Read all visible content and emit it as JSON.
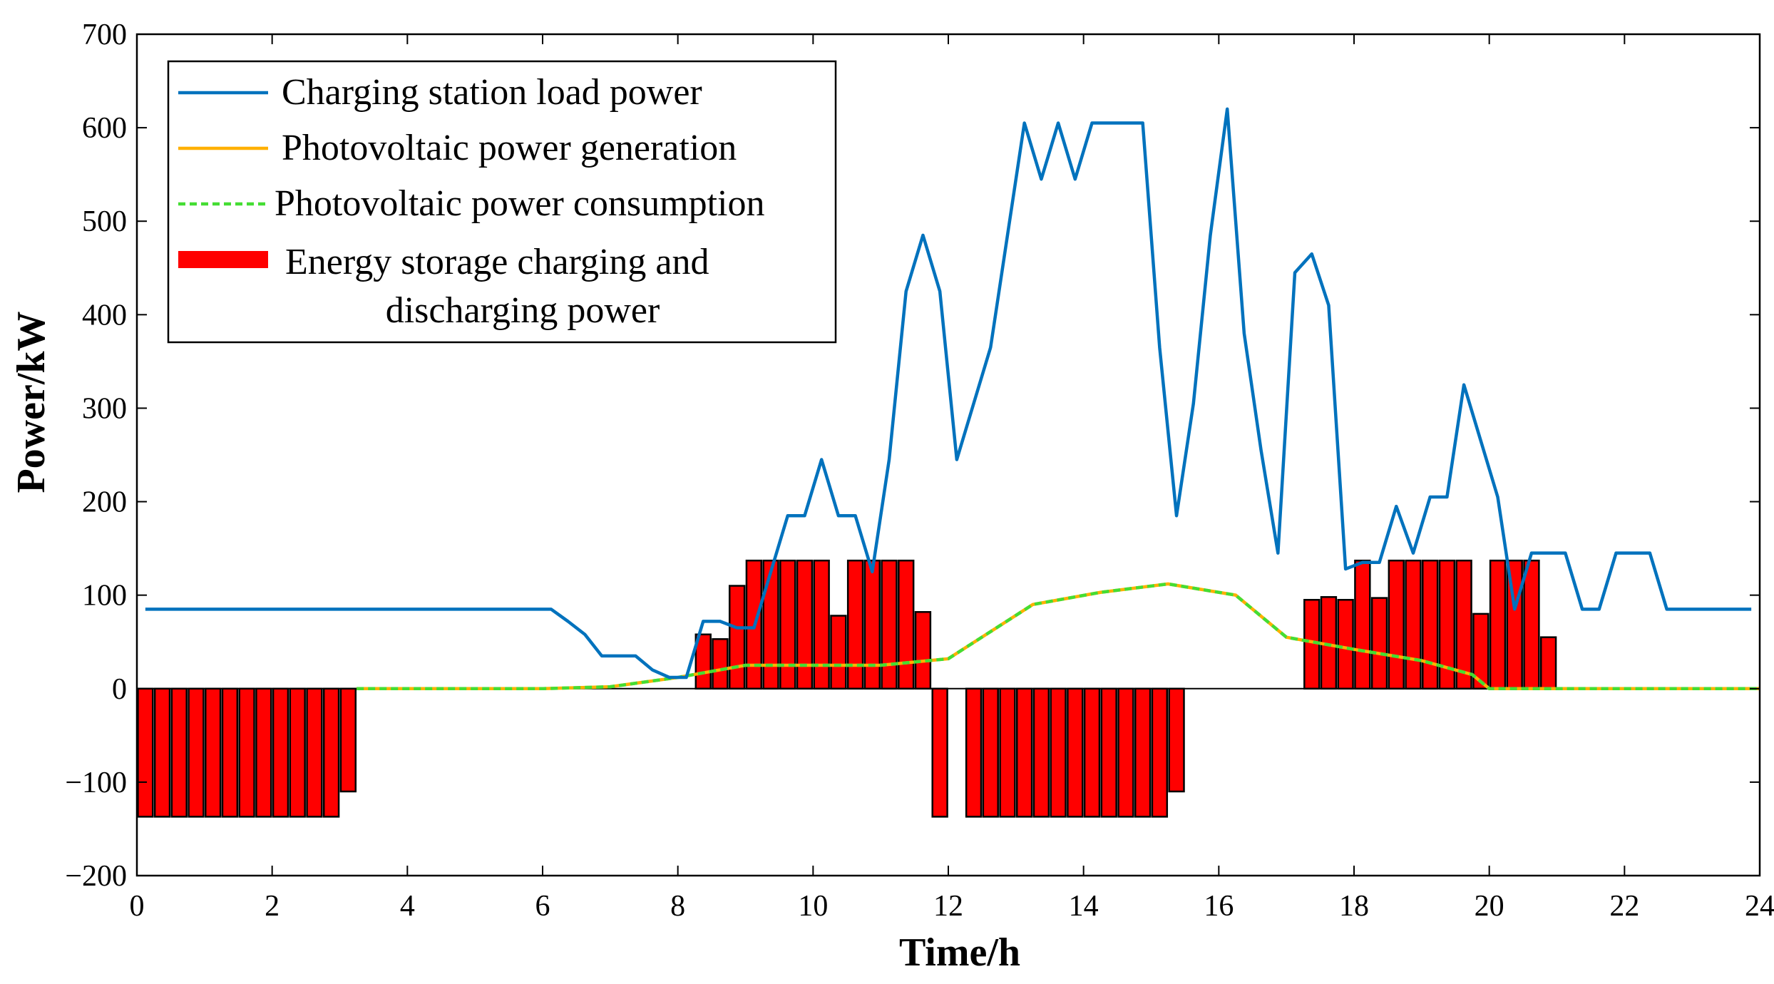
{
  "chart_data": {
    "type": "line+bar",
    "title": "",
    "xlabel": "Time/h",
    "ylabel": "Power/kW",
    "xlim": [
      0,
      24
    ],
    "ylim": [
      -200,
      700
    ],
    "xticks": [
      0,
      2,
      4,
      6,
      8,
      10,
      12,
      14,
      16,
      18,
      20,
      22,
      24
    ],
    "yticks": [
      -200,
      -100,
      0,
      100,
      200,
      300,
      400,
      500,
      600,
      700
    ],
    "legend_position": "top-left",
    "colors": {
      "load": "#0072BD",
      "pv_generation": "#FFB000",
      "pv_consumption": "#44DD33",
      "storage": "#FF0000",
      "bar_edge": "#000000"
    },
    "series": [
      {
        "name": "Charging station load power",
        "kind": "line",
        "x": [
          0.125,
          0.375,
          0.625,
          0.875,
          1.125,
          1.375,
          1.625,
          1.875,
          2.125,
          2.375,
          2.625,
          2.875,
          3.125,
          3.375,
          3.625,
          3.875,
          4.125,
          4.375,
          4.625,
          4.875,
          5.125,
          5.375,
          5.625,
          5.875,
          6.125,
          6.375,
          6.625,
          6.875,
          7.125,
          7.375,
          7.625,
          7.875,
          8.125,
          8.375,
          8.625,
          8.875,
          9.125,
          9.375,
          9.625,
          9.875,
          10.125,
          10.375,
          10.625,
          10.875,
          11.125,
          11.375,
          11.625,
          11.875,
          12.125,
          12.375,
          12.625,
          12.875,
          13.125,
          13.375,
          13.625,
          13.875,
          14.125,
          14.375,
          14.625,
          14.875,
          15.125,
          15.375,
          15.625,
          15.875,
          16.125,
          16.375,
          16.625,
          16.875,
          17.125,
          17.375,
          17.625,
          17.875,
          18.125,
          18.375,
          18.625,
          18.875,
          19.125,
          19.375,
          19.625,
          19.875,
          20.125,
          20.375,
          20.625,
          20.875,
          21.125,
          21.375,
          21.625,
          21.875,
          22.125,
          22.375,
          22.625,
          22.875,
          23.125,
          23.375,
          23.625,
          23.875
        ],
        "values": [
          85,
          85,
          85,
          85,
          85,
          85,
          85,
          85,
          85,
          85,
          85,
          85,
          85,
          85,
          85,
          85,
          85,
          85,
          85,
          85,
          85,
          85,
          85,
          85,
          85,
          72,
          58,
          35,
          35,
          35,
          20,
          12,
          12,
          72,
          72,
          65,
          65,
          125,
          185,
          185,
          245,
          185,
          185,
          125,
          245,
          425,
          485,
          425,
          245,
          305,
          365,
          485,
          605,
          545,
          605,
          545,
          605,
          605,
          605,
          605,
          365,
          185,
          305,
          485,
          620,
          380,
          255,
          145,
          445,
          465,
          410,
          128,
          135,
          135,
          195,
          145,
          205,
          205,
          325,
          265,
          205,
          85,
          145,
          145,
          145,
          85,
          85,
          145,
          145,
          145,
          85,
          85,
          85,
          85,
          85,
          85
        ]
      },
      {
        "name": "Photovoltaic power generation",
        "kind": "line",
        "x": [
          3.25,
          6.0,
          7.0,
          8.0,
          9.0,
          10.0,
          11.0,
          12.0,
          13.25,
          14.25,
          15.25,
          16.25,
          17.0,
          18.0,
          19.0,
          19.75,
          20.0,
          24.0
        ],
        "values": [
          0,
          0,
          2,
          12,
          25,
          25,
          25,
          32,
          90,
          103,
          112,
          100,
          55,
          42,
          30,
          15,
          0,
          0
        ]
      },
      {
        "name": "Photovoltaic power consumption",
        "kind": "line",
        "x": [
          3.25,
          6.0,
          7.0,
          8.0,
          9.0,
          10.0,
          11.0,
          12.0,
          13.25,
          14.25,
          15.25,
          16.25,
          17.0,
          18.0,
          19.0,
          19.75,
          20.0,
          24.0
        ],
        "values": [
          0,
          0,
          2,
          12,
          25,
          25,
          25,
          32,
          90,
          103,
          112,
          100,
          55,
          42,
          30,
          15,
          0,
          0
        ]
      },
      {
        "name": "Energy storage charging and discharging power",
        "kind": "bar",
        "bar_width_h": 0.22,
        "x": [
          0.125,
          0.375,
          0.625,
          0.875,
          1.125,
          1.375,
          1.625,
          1.875,
          2.125,
          2.375,
          2.625,
          2.875,
          3.125,
          8.375,
          8.625,
          8.875,
          9.125,
          9.375,
          9.625,
          9.875,
          10.125,
          10.375,
          10.625,
          10.875,
          11.125,
          11.375,
          11.625,
          11.875,
          12.375,
          12.625,
          12.875,
          13.125,
          13.375,
          13.625,
          13.875,
          14.125,
          14.375,
          14.625,
          14.875,
          15.125,
          15.375,
          17.375,
          17.625,
          17.875,
          18.125,
          18.375,
          18.625,
          18.875,
          19.125,
          19.375,
          19.625,
          19.875,
          20.125,
          20.375,
          20.625,
          20.875
        ],
        "values": [
          -137,
          -137,
          -137,
          -137,
          -137,
          -137,
          -137,
          -137,
          -137,
          -137,
          -137,
          -137,
          -110,
          58,
          53,
          110,
          137,
          137,
          137,
          137,
          137,
          78,
          137,
          137,
          137,
          137,
          82,
          -137,
          -137,
          -137,
          -137,
          -137,
          -137,
          -137,
          -137,
          -137,
          -137,
          -137,
          -137,
          -137,
          -110,
          95,
          98,
          95,
          137,
          97,
          137,
          137,
          137,
          137,
          137,
          80,
          137,
          137,
          137,
          55
        ]
      }
    ],
    "legend": {
      "items": [
        {
          "label": "Charging station load power",
          "style": "solid-line",
          "series": 0
        },
        {
          "label": "Photovoltaic power generation",
          "style": "solid-line",
          "series": 1
        },
        {
          "label": "Photovoltaic power consumption",
          "style": "dashed-line",
          "series": 2
        },
        {
          "label_line1": "Energy storage charging and",
          "label_line2": "discharging power",
          "style": "filled-bar",
          "series": 3
        }
      ]
    }
  }
}
